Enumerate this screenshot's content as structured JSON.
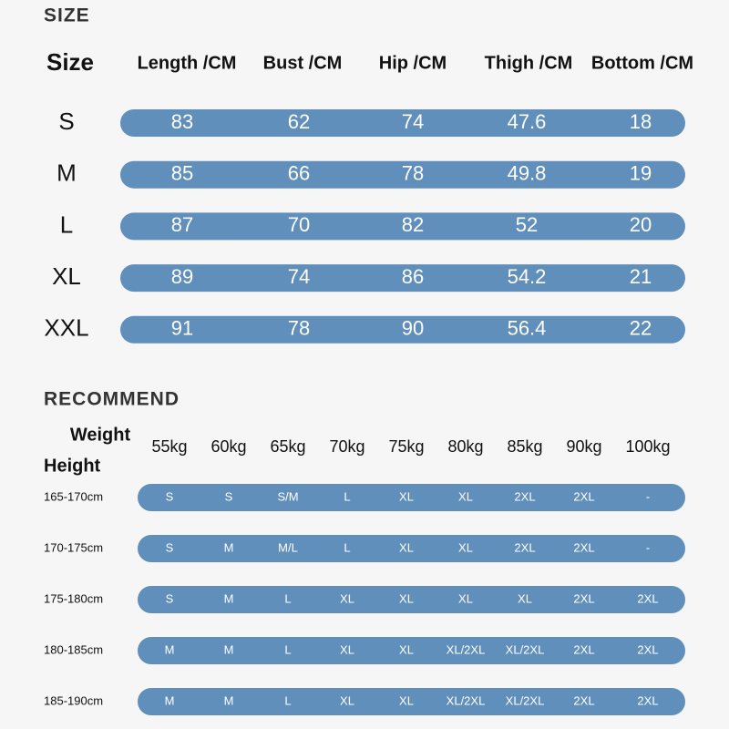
{
  "size": {
    "title": "SIZE",
    "headers": [
      "Size",
      "Length /CM",
      "Bust /CM",
      "Hip /CM",
      "Thigh /CM",
      "Bottom /CM"
    ],
    "rows": [
      {
        "size": "S",
        "values": [
          83,
          62,
          74,
          47.6,
          18
        ]
      },
      {
        "size": "M",
        "values": [
          85,
          66,
          78,
          49.8,
          19
        ]
      },
      {
        "size": "L",
        "values": [
          87,
          70,
          82,
          52,
          20
        ]
      },
      {
        "size": "XL",
        "values": [
          89,
          74,
          86,
          54.2,
          21
        ]
      },
      {
        "size": "XXL",
        "values": [
          91,
          78,
          90,
          56.4,
          22
        ]
      }
    ]
  },
  "recommend": {
    "title": "RECOMMEND",
    "weight_label": "Weight",
    "height_label": "Height",
    "weights": [
      "55kg",
      "60kg",
      "65kg",
      "70kg",
      "75kg",
      "80kg",
      "85kg",
      "90kg",
      "100kg"
    ],
    "rows": [
      {
        "height": "165-170cm",
        "sizes": [
          "S",
          "S",
          "S/M",
          "L",
          "XL",
          "XL",
          "2XL",
          "2XL",
          "-"
        ]
      },
      {
        "height": "170-175cm",
        "sizes": [
          "S",
          "M",
          "M/L",
          "L",
          "XL",
          "XL",
          "2XL",
          "2XL",
          "-"
        ]
      },
      {
        "height": "175-180cm",
        "sizes": [
          "S",
          "M",
          "L",
          "XL",
          "XL",
          "XL",
          "XL",
          "2XL",
          "2XL"
        ]
      },
      {
        "height": "180-185cm",
        "sizes": [
          "M",
          "M",
          "L",
          "XL",
          "XL",
          "XL/2XL",
          "XL/2XL",
          "2XL",
          "2XL"
        ]
      },
      {
        "height": "185-190cm",
        "sizes": [
          "M",
          "M",
          "L",
          "XL",
          "XL",
          "XL/2XL",
          "XL/2XL",
          "2XL",
          "2XL"
        ]
      }
    ]
  }
}
